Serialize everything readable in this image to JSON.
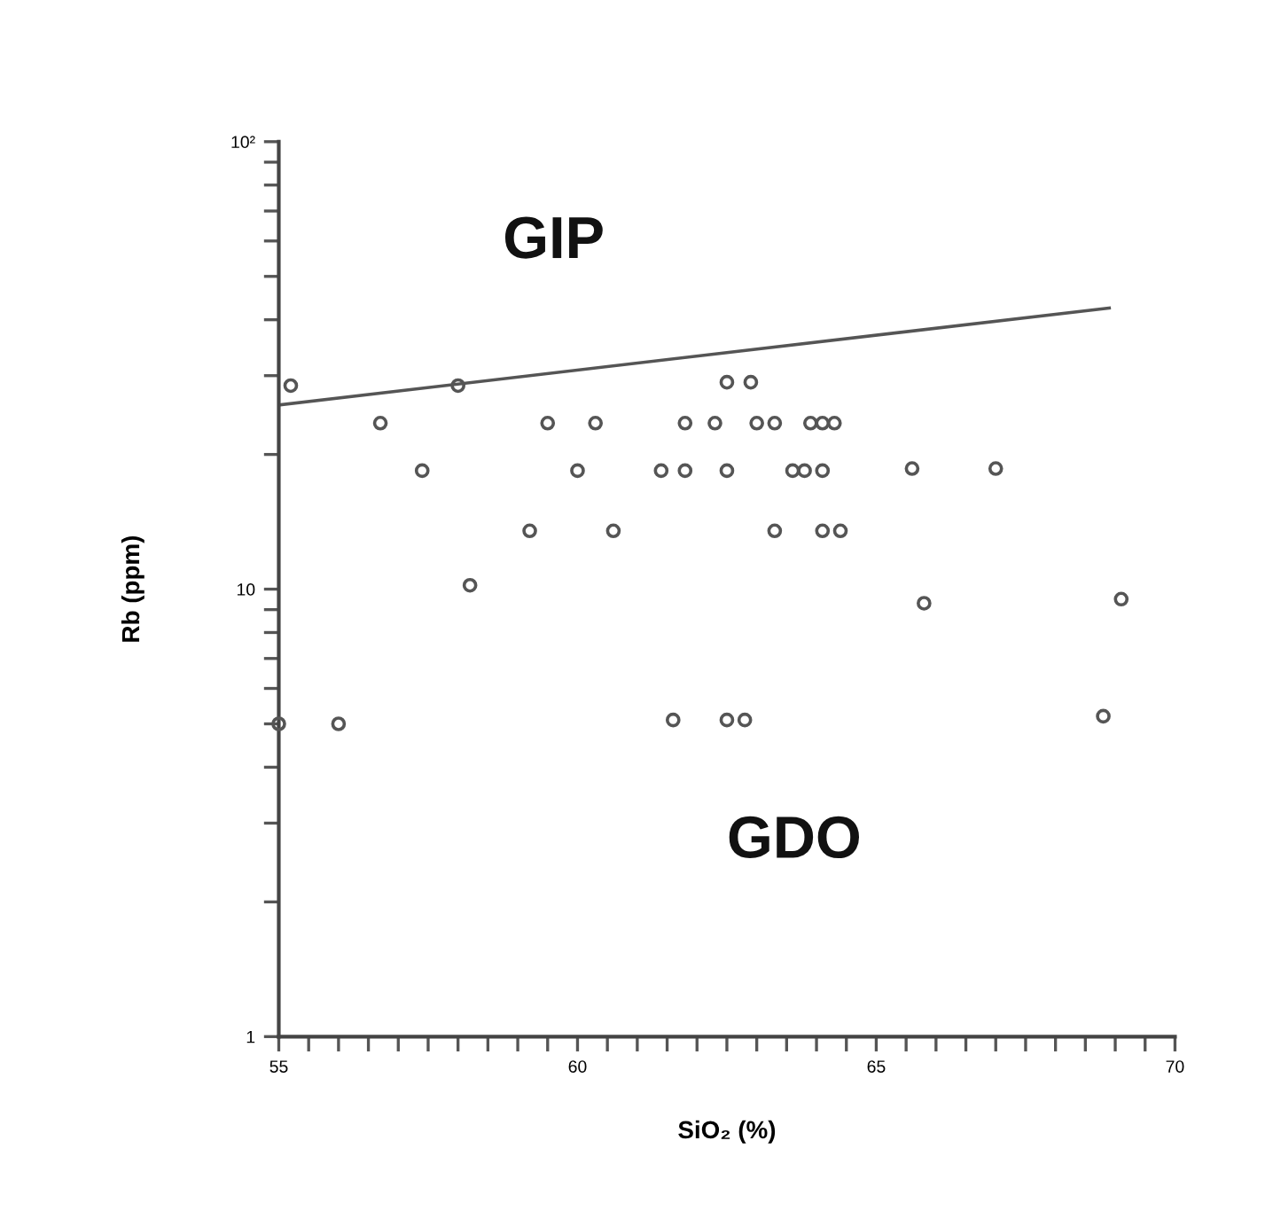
{
  "chart_data": {
    "type": "scatter",
    "xlabel": "SiO₂ (%)",
    "ylabel": "Rb (ppm)",
    "log": "y",
    "xlim": [
      55,
      70
    ],
    "ylim": [
      1,
      100
    ],
    "xticks": [
      55,
      {
        "value": 55.5,
        "label": null
      },
      {
        "value": 56,
        "label": null
      },
      {
        "value": 56.5,
        "label": null
      },
      {
        "value": 57,
        "label": null
      },
      {
        "value": 57.5,
        "label": null
      },
      {
        "value": 58,
        "label": null
      },
      {
        "value": 58.5,
        "label": null
      },
      {
        "value": 59,
        "label": null
      },
      {
        "value": 59.5,
        "label": null
      },
      60,
      {
        "value": 60.5,
        "label": null
      },
      {
        "value": 61,
        "label": null
      },
      {
        "value": 61.5,
        "label": null
      },
      {
        "value": 62,
        "label": null
      },
      {
        "value": 62.5,
        "label": null
      },
      {
        "value": 63,
        "label": null
      },
      {
        "value": 63.5,
        "label": null
      },
      {
        "value": 64,
        "label": null
      },
      {
        "value": 64.5,
        "label": null
      },
      65,
      {
        "value": 65.5,
        "label": null
      },
      {
        "value": 66,
        "label": null
      },
      {
        "value": 66.5,
        "label": null
      },
      {
        "value": 67,
        "label": null
      },
      {
        "value": 67.5,
        "label": null
      },
      {
        "value": 68,
        "label": null
      },
      {
        "value": 68.5,
        "label": null
      },
      {
        "value": 69,
        "label": null
      },
      {
        "value": 69.5,
        "label": null
      },
      70
    ],
    "yticks": [
      1,
      {
        "value": 2,
        "label": null
      },
      {
        "value": 3,
        "label": null
      },
      {
        "value": 4,
        "label": null
      },
      {
        "value": 5,
        "label": null
      },
      {
        "value": 6,
        "label": null
      },
      {
        "value": 7,
        "label": null
      },
      {
        "value": 8,
        "label": null
      },
      {
        "value": 9,
        "label": null
      },
      10,
      {
        "value": 20,
        "label": null
      },
      {
        "value": 30,
        "label": null
      },
      {
        "value": 40,
        "label": null
      },
      {
        "value": 50,
        "label": null
      },
      {
        "value": 60,
        "label": null
      },
      {
        "value": 70,
        "label": null
      },
      {
        "value": 80,
        "label": null
      },
      {
        "value": 90,
        "label": null
      },
      {
        "value": 100,
        "label": "10²"
      }
    ],
    "grid": false,
    "legend": false,
    "annotations": [
      "GIP",
      "GDO"
    ],
    "series": [
      {
        "color": "#555555",
        "marker": "circle",
        "x": [
          55,
          55.2,
          56.0,
          56.7,
          57.4,
          58.0,
          58.2,
          59.2,
          59.5,
          60.0,
          60.3,
          60.6,
          61.4,
          61.6,
          61.8,
          61.8,
          62.3,
          62.5,
          62.5,
          62.5,
          62.8,
          62.9,
          63.0,
          63.3,
          63.3,
          63.6,
          63.8,
          63.9,
          64.1,
          64.1,
          64.1,
          64.3,
          64.4,
          65.6,
          65.8,
          67.0,
          68.8,
          69.1
        ],
        "values": [
          5.0,
          28.5,
          5.0,
          23.5,
          18.4,
          28.5,
          10.2,
          13.5,
          23.5,
          18.4,
          23.5,
          13.5,
          18.4,
          5.1,
          18.4,
          23.5,
          23.5,
          29,
          18.4,
          5.1,
          5.1,
          29,
          23.5,
          23.5,
          13.5,
          18.4,
          18.4,
          23.5,
          18.4,
          23.5,
          13.5,
          23.5,
          13.5,
          18.6,
          9.3,
          18.6,
          5.2,
          9.5
        ]
      },
      {
        "type": "line",
        "color": "#555555",
        "x": [
          55,
          68.9
        ],
        "values": [
          25.8,
          42.5
        ]
      }
    ]
  }
}
